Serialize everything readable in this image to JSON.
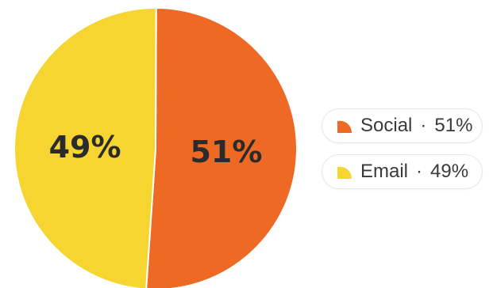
{
  "chart_data": {
    "type": "pie",
    "title": "",
    "slices": [
      {
        "name": "Social",
        "value": 51,
        "label": "51%",
        "legend_text": "51%",
        "color": "#EE6A24"
      },
      {
        "name": "Email",
        "value": 49,
        "label": "49%",
        "legend_text": "49%",
        "color": "#F7D531"
      }
    ],
    "legend": {
      "placement": "right",
      "separator": "·"
    }
  }
}
